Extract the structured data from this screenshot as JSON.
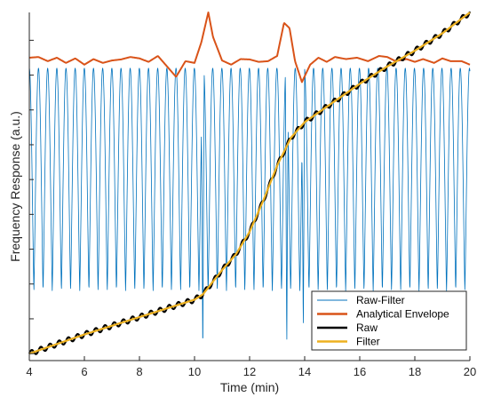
{
  "chart_data": {
    "type": "line",
    "title": "",
    "xlabel": "Time (min)",
    "ylabel": "Frequency Response (a.u.)",
    "xlim": [
      4,
      20
    ],
    "ylim": [
      0,
      1
    ],
    "x_ticks": [
      4,
      6,
      8,
      10,
      12,
      14,
      16,
      18,
      20
    ],
    "y_ticks": [
      0.02,
      0.12,
      0.22,
      0.32,
      0.42,
      0.52,
      0.62,
      0.72,
      0.82,
      0.92
    ],
    "y_tick_labels_visible": false,
    "grid": false,
    "legend_position": "bottom-right",
    "series": [
      {
        "name": "Raw-Filter",
        "color": "#0072BD",
        "linewidth": 0.8,
        "kind": "oscillation",
        "period_min": 0.333,
        "upper": 0.84,
        "lower": 0.2,
        "spikes": [
          {
            "x": 10.3,
            "y": 0.0
          },
          {
            "x": 13.35,
            "y": 0.03
          },
          {
            "x": 13.95,
            "y": 0.08
          }
        ]
      },
      {
        "name": "Analytical Envelope",
        "color": "#D95319",
        "linewidth": 2,
        "x": [
          4,
          4.33,
          4.67,
          5,
          5.33,
          5.67,
          6,
          6.33,
          6.67,
          7,
          7.33,
          7.67,
          8,
          8.33,
          8.67,
          9,
          9.33,
          9.67,
          10,
          10.25,
          10.5,
          10.67,
          11,
          11.33,
          11.67,
          12,
          12.33,
          12.67,
          13,
          13.25,
          13.45,
          13.65,
          13.9,
          14.2,
          14.5,
          14.8,
          15.1,
          15.5,
          15.9,
          16.3,
          16.7,
          17,
          17.3,
          17.7,
          18,
          18.3,
          18.7,
          19,
          19.3,
          19.7,
          20
        ],
        "y": [
          0.87,
          0.872,
          0.86,
          0.87,
          0.855,
          0.868,
          0.85,
          0.866,
          0.855,
          0.862,
          0.865,
          0.872,
          0.868,
          0.858,
          0.875,
          0.845,
          0.815,
          0.86,
          0.855,
          0.915,
          1.0,
          0.93,
          0.862,
          0.85,
          0.866,
          0.865,
          0.858,
          0.86,
          0.875,
          0.97,
          0.955,
          0.86,
          0.8,
          0.85,
          0.87,
          0.858,
          0.872,
          0.866,
          0.87,
          0.86,
          0.875,
          0.872,
          0.86,
          0.866,
          0.858,
          0.866,
          0.855,
          0.868,
          0.86,
          0.86,
          0.85
        ]
      },
      {
        "name": "Raw",
        "color": "#000000",
        "linewidth": 2.2,
        "ripple": 0.008,
        "x": [
          4,
          6,
          8,
          10,
          10.3,
          10.6,
          11,
          11.5,
          12,
          12.5,
          13,
          13.5,
          14,
          15,
          16,
          17,
          18,
          19,
          20
        ],
        "y": [
          0.02,
          0.075,
          0.125,
          0.175,
          0.19,
          0.22,
          0.26,
          0.305,
          0.37,
          0.46,
          0.56,
          0.64,
          0.685,
          0.74,
          0.795,
          0.845,
          0.89,
          0.94,
          1.0
        ]
      },
      {
        "name": "Filter",
        "color": "#EDB120",
        "linewidth": 2.2,
        "x": [
          4,
          6,
          8,
          10,
          10.3,
          10.6,
          11,
          11.5,
          12,
          12.5,
          13,
          13.5,
          14,
          15,
          16,
          17,
          18,
          19,
          20
        ],
        "y": [
          0.02,
          0.075,
          0.125,
          0.175,
          0.19,
          0.22,
          0.26,
          0.305,
          0.37,
          0.46,
          0.56,
          0.64,
          0.685,
          0.74,
          0.795,
          0.845,
          0.89,
          0.94,
          1.0
        ]
      }
    ]
  }
}
